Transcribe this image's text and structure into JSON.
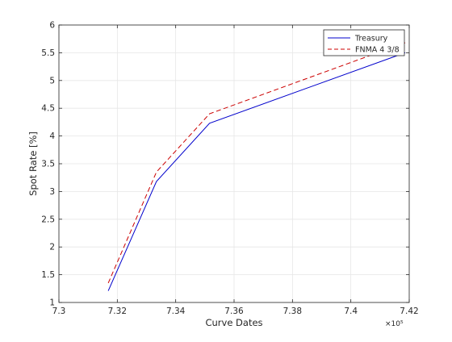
{
  "chart_data": {
    "type": "line",
    "title": "",
    "xlabel": "Curve Dates",
    "ylabel": "Spot Rate [%]",
    "x_exponent_label": "×10⁵",
    "x_scale_factor": 100000,
    "xlim": [
      7.3,
      7.42
    ],
    "ylim": [
      1,
      6
    ],
    "x_ticks": [
      7.3,
      7.32,
      7.34,
      7.36,
      7.38,
      7.4,
      7.42
    ],
    "x_tick_labels": [
      "7.3",
      "7.32",
      "7.34",
      "7.36",
      "7.38",
      "7.4",
      "7.42"
    ],
    "y_ticks": [
      1,
      1.5,
      2,
      2.5,
      3,
      3.5,
      4,
      4.5,
      5,
      5.5,
      6
    ],
    "y_tick_labels": [
      "1",
      "1.5",
      "2",
      "2.5",
      "3",
      "3.5",
      "4",
      "4.5",
      "5",
      "5.5",
      "6"
    ],
    "grid": true,
    "legend_position": "top-right",
    "series": [
      {
        "name": "Treasury",
        "color": "#0000cc",
        "line_style": "solid",
        "x": [
          7.3169,
          7.3334,
          7.3516,
          7.4186
        ],
        "y": [
          1.21,
          3.18,
          4.23,
          5.5
        ]
      },
      {
        "name": "FNMA 4 3/8",
        "color": "#cc0000",
        "line_style": "dashed",
        "x": [
          7.3169,
          7.3334,
          7.3516,
          7.4186
        ],
        "y": [
          1.35,
          3.35,
          4.4,
          5.68
        ]
      }
    ]
  }
}
